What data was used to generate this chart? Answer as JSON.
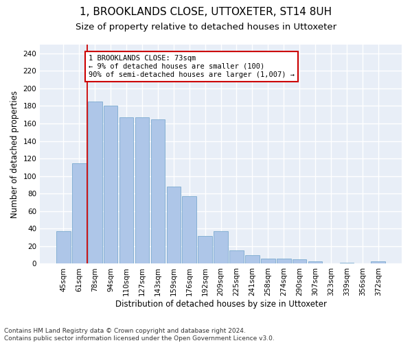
{
  "title": "1, BROOKLANDS CLOSE, UTTOXETER, ST14 8UH",
  "subtitle": "Size of property relative to detached houses in Uttoxeter",
  "xlabel": "Distribution of detached houses by size in Uttoxeter",
  "ylabel": "Number of detached properties",
  "categories": [
    "45sqm",
    "61sqm",
    "78sqm",
    "94sqm",
    "110sqm",
    "127sqm",
    "143sqm",
    "159sqm",
    "176sqm",
    "192sqm",
    "209sqm",
    "225sqm",
    "241sqm",
    "258sqm",
    "274sqm",
    "290sqm",
    "307sqm",
    "323sqm",
    "339sqm",
    "356sqm",
    "372sqm"
  ],
  "values": [
    37,
    115,
    185,
    180,
    167,
    167,
    165,
    88,
    77,
    32,
    37,
    15,
    10,
    6,
    6,
    5,
    3,
    0,
    1,
    0,
    3
  ],
  "bar_color": "#aec6e8",
  "bar_edge_color": "#7aaacf",
  "vline_x": 1.5,
  "vline_color": "#cc0000",
  "annotation_text": "1 BROOKLANDS CLOSE: 73sqm\n← 9% of detached houses are smaller (100)\n90% of semi-detached houses are larger (1,007) →",
  "annotation_box_color": "#cc0000",
  "ylim": [
    0,
    250
  ],
  "yticks": [
    0,
    20,
    40,
    60,
    80,
    100,
    120,
    140,
    160,
    180,
    200,
    220,
    240
  ],
  "footnote": "Contains HM Land Registry data © Crown copyright and database right 2024.\nContains public sector information licensed under the Open Government Licence v3.0.",
  "bg_color": "#e8eef7",
  "grid_color": "#ffffff",
  "title_fontsize": 11,
  "subtitle_fontsize": 9.5,
  "axis_label_fontsize": 8.5,
  "tick_fontsize": 7.5,
  "annotation_fontsize": 7.5,
  "footnote_fontsize": 6.5
}
